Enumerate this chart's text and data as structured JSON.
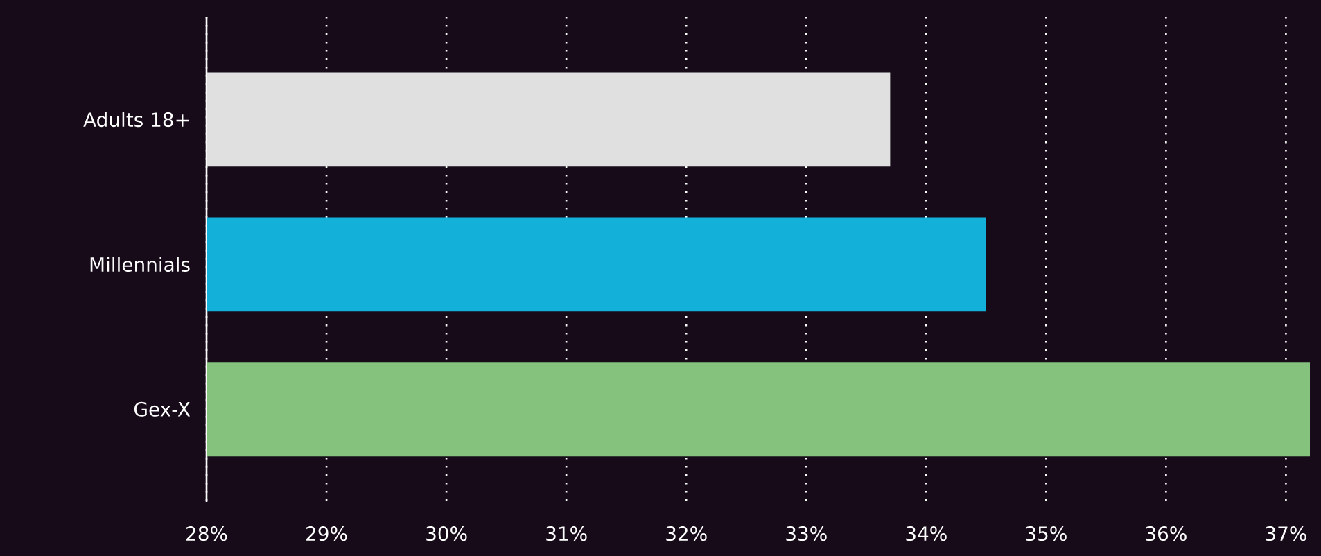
{
  "chart_data": {
    "type": "bar",
    "orientation": "horizontal",
    "categories": [
      "Adults 18+",
      "Millennials",
      "Gex-X"
    ],
    "values": [
      33.7,
      34.5,
      37.2
    ],
    "colors": [
      "#e0e0e0",
      "#13b1da",
      "#85c27e"
    ],
    "xlim": [
      28,
      37.2
    ],
    "xticks": [
      {
        "value": 28,
        "label": "28%"
      },
      {
        "value": 29,
        "label": "29%"
      },
      {
        "value": 30,
        "label": "30%"
      },
      {
        "value": 31,
        "label": "31%"
      },
      {
        "value": 32,
        "label": "32%"
      },
      {
        "value": 33,
        "label": "33%"
      },
      {
        "value": 34,
        "label": "34%"
      },
      {
        "value": 35,
        "label": "35%"
      },
      {
        "value": 36,
        "label": "36%"
      },
      {
        "value": 37,
        "label": "37%"
      }
    ],
    "grid": "x"
  }
}
